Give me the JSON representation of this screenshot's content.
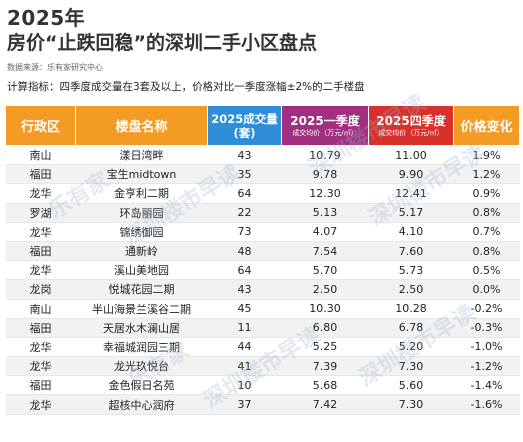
{
  "header": {
    "title_line1": "2025年",
    "title_line2": "房价“止跌回稳”的深圳二手小区盘点",
    "source": "数据来源：乐有家研究中心",
    "criteria": "计算指标：四季度成交量在3套及以上，价格对比一季度涨幅±2%的二手楼盘"
  },
  "columns": {
    "district": "行政区",
    "estate": "楼盘名称",
    "volume_line1": "2025成交量",
    "volume_line2": "(套)",
    "q1_title": "2025一季度",
    "q1_sub": "成交均价（万元/㎡）",
    "q4_title": "2025四季度",
    "q4_sub": "成交均价（万元/㎡）",
    "change": "价格变化"
  },
  "rows": [
    {
      "district": "南山",
      "estate": "漾日湾畔",
      "volume": "43",
      "q1": "10.79",
      "q4": "11.00",
      "change": "1.9%"
    },
    {
      "district": "福田",
      "estate": "宝生midtown",
      "volume": "35",
      "q1": "9.78",
      "q4": "9.90",
      "change": "1.2%"
    },
    {
      "district": "龙华",
      "estate": "金亨利二期",
      "volume": "64",
      "q1": "12.30",
      "q4": "12.41",
      "change": "0.9%"
    },
    {
      "district": "罗湖",
      "estate": "环岛丽园",
      "volume": "22",
      "q1": "5.13",
      "q4": "5.17",
      "change": "0.8%"
    },
    {
      "district": "龙华",
      "estate": "锦绣御园",
      "volume": "73",
      "q1": "4.07",
      "q4": "4.10",
      "change": "0.7%"
    },
    {
      "district": "福田",
      "estate": "通新岭",
      "volume": "48",
      "q1": "7.54",
      "q4": "7.60",
      "change": "0.8%"
    },
    {
      "district": "龙华",
      "estate": "溪山美地园",
      "volume": "64",
      "q1": "5.70",
      "q4": "5.73",
      "change": "0.5%"
    },
    {
      "district": "龙岗",
      "estate": "悦城花园二期",
      "volume": "43",
      "q1": "2.50",
      "q4": "2.50",
      "change": "0.0%"
    },
    {
      "district": "南山",
      "estate": "半山海景兰溪谷二期",
      "volume": "45",
      "q1": "10.30",
      "q4": "10.28",
      "change": "-0.2%"
    },
    {
      "district": "福田",
      "estate": "天居水木澜山居",
      "volume": "11",
      "q1": "6.80",
      "q4": "6.78",
      "change": "-0.3%"
    },
    {
      "district": "龙华",
      "estate": "幸福城润园三期",
      "volume": "44",
      "q1": "5.25",
      "q4": "5.20",
      "change": "-1.0%"
    },
    {
      "district": "龙华",
      "estate": "龙光玖悦台",
      "volume": "41",
      "q1": "7.39",
      "q4": "7.30",
      "change": "-1.2%"
    },
    {
      "district": "福田",
      "estate": "金色假日名苑",
      "volume": "10",
      "q1": "5.68",
      "q4": "5.60",
      "change": "-1.4%"
    },
    {
      "district": "龙华",
      "estate": "超核中心润府",
      "volume": "37",
      "q1": "7.42",
      "q4": "7.30",
      "change": "-1.6%"
    }
  ],
  "watermark": {
    "text1": "深圳楼市早读",
    "text2": "乐有家"
  }
}
